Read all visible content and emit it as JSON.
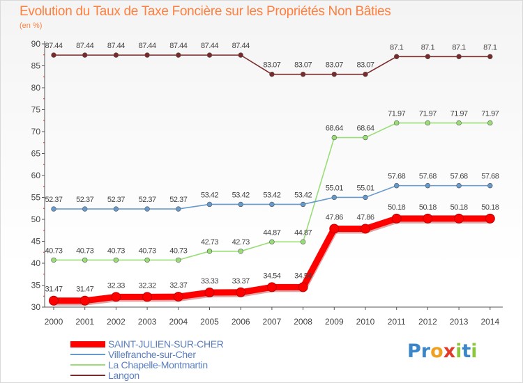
{
  "header": {
    "title": "Evolution du Taux de Taxe Foncière sur les Propriétés Non Bâties",
    "subtitle": "(en %)"
  },
  "brand": {
    "letters": [
      {
        "ch": "P",
        "color": "#3b86c8"
      },
      {
        "ch": "r",
        "color": "#3b86c8"
      },
      {
        "ch": "o",
        "color": "#f0a020"
      },
      {
        "ch": "x",
        "color": "#e23a2a"
      },
      {
        "ch": "i",
        "color": "#8cc63f"
      },
      {
        "ch": "t",
        "color": "#3b86c8"
      },
      {
        "ch": "i",
        "color": "#8cc63f"
      }
    ]
  },
  "chart_data": {
    "type": "line",
    "x": [
      "2000",
      "2001",
      "2002",
      "2003",
      "2004",
      "2005",
      "2006",
      "2007",
      "2008",
      "2009",
      "2010",
      "2011",
      "2012",
      "2013",
      "2014"
    ],
    "ylim": [
      30,
      90
    ],
    "yticks": [
      30,
      35,
      40,
      45,
      50,
      55,
      60,
      65,
      70,
      75,
      80,
      85,
      90
    ],
    "grid": false,
    "legend_position": "bottom-left",
    "series": [
      {
        "name": "SAINT-JULIEN-SUR-CHER",
        "color": "#ff0000",
        "values": [
          31.47,
          31.47,
          32.33,
          32.32,
          32.37,
          33.33,
          33.37,
          34.54,
          34.54,
          47.86,
          47.86,
          50.18,
          50.18,
          50.18,
          50.18
        ],
        "labels": [
          "31.47",
          "31.47",
          "32.33",
          "32.32",
          "32.37",
          "33.33",
          "33.37",
          "34.54",
          "34.54",
          "47.86",
          "47.86",
          "50.18",
          "50.18",
          "50.18",
          "50.18"
        ]
      },
      {
        "name": "Villefranche-sur-Cher",
        "color": "#6699cc",
        "values": [
          52.37,
          52.37,
          52.37,
          52.37,
          52.37,
          53.42,
          53.42,
          53.42,
          53.42,
          55.01,
          55.01,
          57.68,
          57.68,
          57.68,
          57.68
        ],
        "labels": [
          "52.37",
          "52.37",
          "52.37",
          "52.37",
          "52.37",
          "53.42",
          "53.42",
          "53.42",
          "53.42",
          "55.01",
          "55.01",
          "57.68",
          "57.68",
          "57.68",
          "57.68"
        ]
      },
      {
        "name": "La Chapelle-Montmartin",
        "color": "#99dd77",
        "values": [
          40.73,
          40.73,
          40.73,
          40.73,
          40.73,
          42.73,
          42.73,
          44.87,
          44.87,
          68.64,
          68.64,
          71.97,
          71.97,
          71.97,
          71.97
        ],
        "labels": [
          "40.73",
          "40.73",
          "40.73",
          "40.73",
          "40.73",
          "42.73",
          "42.73",
          "44.87",
          "44.87",
          "68.64",
          "68.64",
          "71.97",
          "71.97",
          "71.97",
          "71.97"
        ]
      },
      {
        "name": "Langon",
        "color": "#7a2a2a",
        "values": [
          87.44,
          87.44,
          87.44,
          87.44,
          87.44,
          87.44,
          87.44,
          83.07,
          83.07,
          83.07,
          83.07,
          87.1,
          87.1,
          87.1,
          87.1
        ],
        "labels": [
          "87.44",
          "87.44",
          "87.44",
          "87.44",
          "87.44",
          "87.44",
          "87.44",
          "83.07",
          "83.07",
          "83.07",
          "83.07",
          "87.1",
          "87.1",
          "87.1",
          "87.1"
        ]
      }
    ]
  }
}
